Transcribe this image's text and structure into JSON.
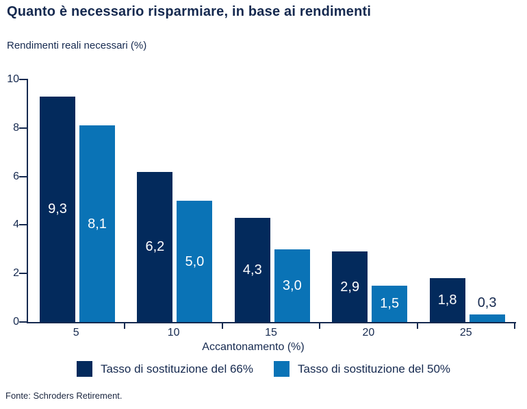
{
  "footer": {
    "source": "Fonte: Schroders Retirement."
  },
  "chart_data": {
    "type": "bar",
    "title": "Quanto è necessario risparmiare, in base ai rendimenti",
    "subtitle": "Rendimenti reali necessari (%)",
    "xlabel": "Accantonamento (%)",
    "ylabel": "Rendimenti reali necessari (%)",
    "categories": [
      "5",
      "10",
      "15",
      "20",
      "25"
    ],
    "series": [
      {
        "name": "Tasso di sostituzione del 66%",
        "color": "#032a5c",
        "values": [
          9.3,
          6.2,
          4.3,
          2.9,
          1.8
        ],
        "value_labels": [
          "9,3",
          "6,2",
          "4,3",
          "2,9",
          "1,8"
        ]
      },
      {
        "name": "Tasso di sostituzione del 50%",
        "color": "#0a73b6",
        "values": [
          8.1,
          5.0,
          3.0,
          1.5,
          0.3
        ],
        "value_labels": [
          "8,1",
          "5,0",
          "3,0",
          "1,5",
          "0,3"
        ]
      }
    ],
    "ylim": [
      0,
      10
    ],
    "yticks": [
      0,
      2,
      4,
      6,
      8,
      10
    ],
    "grid": false,
    "legend_position": "bottom",
    "colors": {
      "text": "#15294f",
      "background": "#ffffff"
    }
  }
}
